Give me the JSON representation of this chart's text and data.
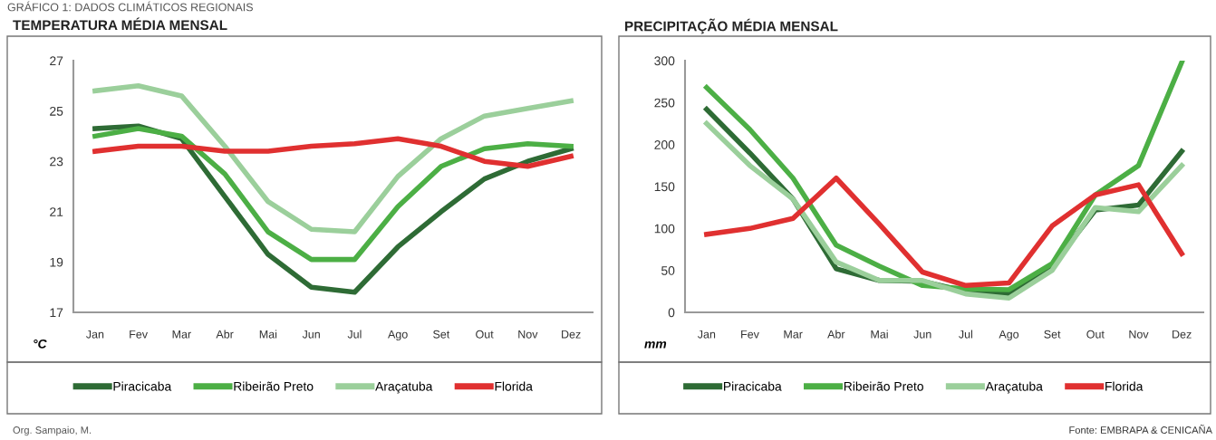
{
  "chart_data": [
    {
      "type": "line",
      "title": "TEMPERATURA MÉDIA MENSAL",
      "ylabel": "°C",
      "annotations": [
        "GRÁFICO 1: DADOS CLIMÁTICOS REGIONAIS",
        "Org. Sampaio, M."
      ],
      "categories": [
        "Jan",
        "Fev",
        "Mar",
        "Abr",
        "Mai",
        "Jun",
        "Jul",
        "Ago",
        "Set",
        "Out",
        "Nov",
        "Dez"
      ],
      "ylim": [
        17,
        27
      ],
      "yticks": [
        17,
        19,
        21,
        23,
        25,
        27
      ],
      "grid": false,
      "legend": "bottom",
      "marker": "none",
      "line_style": "solid",
      "series": [
        {
          "name": "Piracicaba",
          "color": "#2e6b35",
          "values": [
            24.3,
            24.4,
            23.9,
            21.6,
            19.3,
            18.0,
            17.8,
            19.6,
            21.0,
            22.3,
            23.0,
            23.5
          ]
        },
        {
          "name": "Ribeirão Preto",
          "color": "#4caf45",
          "values": [
            24.0,
            24.3,
            24.0,
            22.5,
            20.2,
            19.1,
            19.1,
            21.2,
            22.8,
            23.5,
            23.7,
            23.6
          ]
        },
        {
          "name": "Araçatuba",
          "color": "#9bcf9b",
          "values": [
            25.8,
            26.0,
            25.6,
            23.6,
            21.4,
            20.3,
            20.2,
            22.4,
            23.9,
            24.8,
            25.1,
            25.4
          ]
        },
        {
          "name": "Florida",
          "color": "#e03030",
          "values": [
            23.4,
            23.6,
            23.6,
            23.4,
            23.4,
            23.6,
            23.7,
            23.9,
            23.6,
            23.0,
            22.8,
            23.2
          ]
        }
      ]
    },
    {
      "type": "line",
      "title": "PRECIPITAÇÃO MÉDIA MENSAL",
      "ylabel": "mm",
      "annotations": [
        "Fonte: EMBRAPA & CENICAÑA"
      ],
      "categories": [
        "Jan",
        "Fev",
        "Mar",
        "Abr",
        "Mai",
        "Jun",
        "Jul",
        "Ago",
        "Set",
        "Out",
        "Nov",
        "Dez"
      ],
      "ylim": [
        0,
        300
      ],
      "yticks": [
        0,
        50,
        100,
        150,
        200,
        250,
        300
      ],
      "grid": false,
      "legend": "bottom",
      "marker": "none",
      "line_style": "solid",
      "series": [
        {
          "name": "Piracicaba",
          "color": "#2e6b35",
          "values": [
            242,
            190,
            135,
            52,
            38,
            37,
            25,
            22,
            55,
            122,
            128,
            192
          ]
        },
        {
          "name": "Ribeirão Preto",
          "color": "#4caf45",
          "values": [
            268,
            218,
            160,
            80,
            55,
            32,
            28,
            27,
            58,
            140,
            175,
            298
          ]
        },
        {
          "name": "Araçatuba",
          "color": "#9bcf9b",
          "values": [
            225,
            175,
            135,
            60,
            38,
            38,
            22,
            17,
            50,
            125,
            120,
            175
          ]
        },
        {
          "name": "Florida",
          "color": "#e03030",
          "values": [
            93,
            100,
            112,
            160,
            105,
            48,
            32,
            35,
            103,
            140,
            152,
            70
          ]
        }
      ]
    }
  ]
}
